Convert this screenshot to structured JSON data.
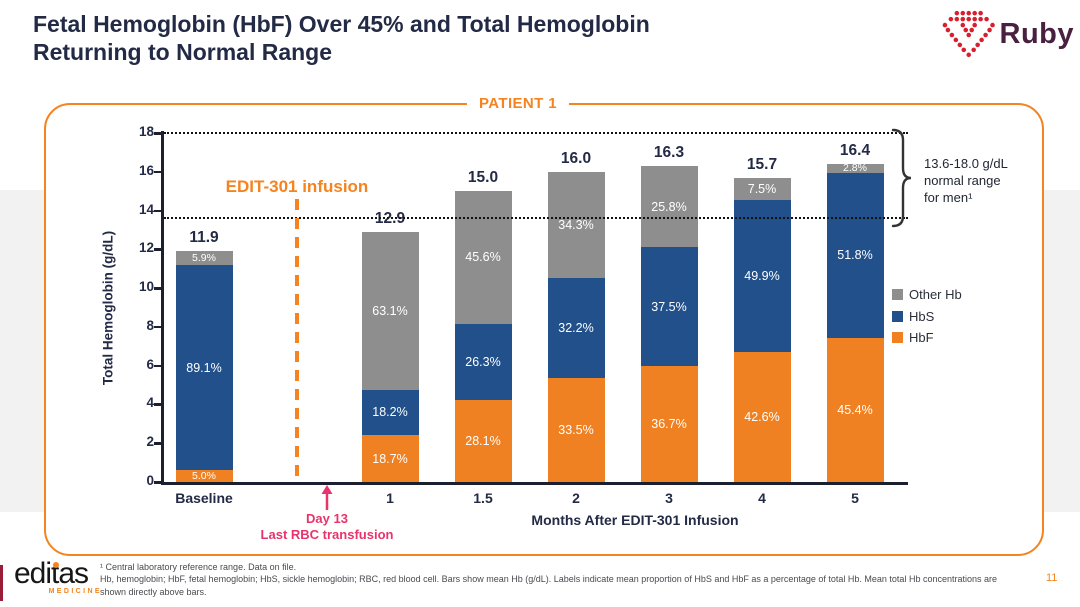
{
  "slide": {
    "title_line1": "Fetal Hemoglobin (HbF) Over 45% and Total Hemoglobin",
    "title_line2": "Returning to Normal Range",
    "page_number": "11"
  },
  "ruby_logo": {
    "text": "Ruby"
  },
  "chart_data": {
    "type": "bar",
    "stacked": true,
    "title": "PATIENT 1",
    "categories": [
      "Baseline",
      "1",
      "1.5",
      "2",
      "3",
      "4",
      "5"
    ],
    "slot_of_category": [
      0,
      2,
      3,
      4,
      5,
      6,
      7
    ],
    "totals": [
      11.9,
      12.9,
      15.0,
      16.0,
      16.3,
      15.7,
      16.4
    ],
    "series": [
      {
        "name": "HbF",
        "color": "#F08122",
        "pct": [
          5.0,
          18.7,
          28.1,
          33.5,
          36.7,
          42.6,
          45.4
        ]
      },
      {
        "name": "HbS",
        "color": "#21508A",
        "pct": [
          89.1,
          18.2,
          26.3,
          32.2,
          37.5,
          49.9,
          51.8
        ]
      },
      {
        "name": "Other Hb",
        "color": "#8E8E8E",
        "pct": [
          5.9,
          63.1,
          45.6,
          34.3,
          25.8,
          7.5,
          2.8
        ]
      }
    ],
    "ylabel": "Total Hemoglobin (g/dL)",
    "xlabel": "Months After EDIT-301 Infusion",
    "ylim": [
      0,
      18
    ],
    "ytick_step": 2,
    "grid": false,
    "reference_range": {
      "low": 13.6,
      "high": 18.0,
      "label_lines": [
        "13.6-18.0  g/dL",
        "normal range",
        "for men¹"
      ]
    },
    "legend_position": "right",
    "legend": [
      {
        "label": "Other Hb",
        "color": "#8E8E8E"
      },
      {
        "label": "HbS",
        "color": "#21508A"
      },
      {
        "label": "HbF",
        "color": "#F08122"
      }
    ],
    "annotations": {
      "infusion": "EDIT-301 infusion",
      "day13": [
        "Day 13",
        "Last RBC transfusion"
      ]
    }
  },
  "footer": {
    "logo_text": "editas",
    "logo_sub": "MEDICINE",
    "footnote_lines": [
      "¹ Central laboratory reference range. Data on file.",
      "Hb, hemoglobin; HbF, fetal hemoglobin; HbS, sickle hemoglobin; RBC, red blood cell. Bars show mean Hb (g/dL). Labels indicate mean proportion of HbS and HbF as a percentage of total Hb. Mean total Hb concentrations are",
      "shown directly above bars."
    ]
  },
  "colors": {
    "accent_orange": "#F5831F",
    "navy": "#232A45",
    "pink": "#E8336D",
    "hbf_orange": "#F08122",
    "hbs_blue": "#21508A",
    "other_gray": "#8E8E8E",
    "band_gray": "#F2F2F2",
    "axis_dark": "#1B2030",
    "ruby_red": "#D91F2E",
    "ruby_plum": "#4A2040"
  }
}
